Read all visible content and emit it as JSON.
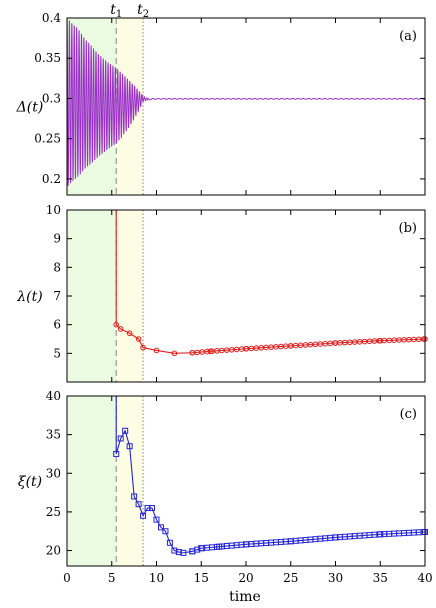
{
  "chart_data": [
    {
      "type": "line",
      "panel_label": "(a)",
      "ylabel": "Δ(t)",
      "xlim": [
        0,
        40
      ],
      "ylim": [
        0.18,
        0.4
      ],
      "yticks": [
        "0.2",
        "0.25",
        "0.3",
        "0.35",
        "0.4"
      ],
      "line_color": "#9b30c8",
      "region_colors": [
        "#eafbe2",
        "#fdfde4"
      ],
      "region_bounds": [
        5.5,
        8.5
      ],
      "series": [
        {
          "values_description_free": true,
          "x": [
            0,
            1,
            2,
            3,
            4,
            5,
            5.5,
            6,
            7,
            8,
            8.5,
            9,
            10,
            15,
            20,
            25,
            30,
            35,
            40
          ],
          "upper_envelope": [
            0.4,
            0.39,
            0.375,
            0.362,
            0.35,
            0.342,
            0.338,
            0.333,
            0.322,
            0.31,
            0.303,
            0.3,
            0.3,
            0.3,
            0.3,
            0.3,
            0.3,
            0.3,
            0.3
          ],
          "lower_envelope": [
            0.19,
            0.2,
            0.212,
            0.222,
            0.232,
            0.24,
            0.244,
            0.25,
            0.265,
            0.285,
            0.296,
            0.298,
            0.299,
            0.299,
            0.299,
            0.299,
            0.299,
            0.299,
            0.299
          ]
        }
      ]
    },
    {
      "type": "line",
      "panel_label": "(b)",
      "ylabel": "λ(t)",
      "xlim": [
        0,
        40
      ],
      "ylim": [
        4,
        10
      ],
      "yticks": [
        "5",
        "6",
        "7",
        "8",
        "9",
        "10"
      ],
      "line_color": "#e11d1d",
      "marker": "circle",
      "series": [
        {
          "x": [
            5.5,
            5.5,
            6,
            7,
            8,
            8.5,
            10,
            12,
            14,
            16,
            20,
            25,
            30,
            35,
            40
          ],
          "y": [
            10,
            6.0,
            5.85,
            5.7,
            5.5,
            5.2,
            5.1,
            5.0,
            5.02,
            5.07,
            5.16,
            5.26,
            5.36,
            5.44,
            5.5
          ]
        }
      ]
    },
    {
      "type": "line",
      "panel_label": "(c)",
      "ylabel": "ξ(t)",
      "xlabel": "time",
      "xlim": [
        0,
        40
      ],
      "ylim": [
        18,
        40
      ],
      "yticks": [
        "20",
        "25",
        "30",
        "35",
        "40"
      ],
      "xticks": [
        "0",
        "5",
        "10",
        "15",
        "20",
        "25",
        "30",
        "35",
        "40"
      ],
      "line_color": "#2424d8",
      "marker": "square",
      "series": [
        {
          "x": [
            5.5,
            5.5,
            6,
            6.5,
            7,
            7.5,
            8,
            8.5,
            9,
            9.5,
            10,
            10.5,
            11,
            11.5,
            12,
            12.5,
            13,
            14,
            15,
            17,
            20,
            25,
            30,
            35,
            40
          ],
          "y": [
            40,
            32.5,
            34.5,
            35.5,
            33.5,
            27,
            26,
            24.5,
            25.5,
            25.5,
            24,
            23,
            22.5,
            21,
            20,
            19.8,
            19.7,
            19.9,
            20.3,
            20.5,
            20.8,
            21.2,
            21.7,
            22.1,
            22.4
          ]
        }
      ]
    }
  ],
  "time_markers": [
    {
      "label": "t1",
      "base": "t",
      "sub": "1",
      "x": 5.5,
      "style": "dashed"
    },
    {
      "label": "t2",
      "base": "t",
      "sub": "2",
      "x": 8.5,
      "style": "dotted"
    }
  ],
  "xaxis_label": "time"
}
